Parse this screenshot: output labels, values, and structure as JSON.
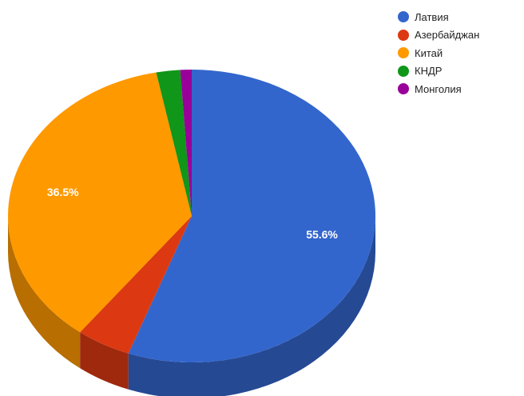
{
  "chart_data": {
    "type": "pie",
    "style": "3d",
    "title": "",
    "slices": [
      {
        "label": "Латвия",
        "value": 55.6,
        "color": "#3366cc",
        "data_label": "55.6%"
      },
      {
        "label": "Азербайджан",
        "value": 4.8,
        "color": "#dc3912",
        "data_label": ""
      },
      {
        "label": "Китай",
        "value": 36.5,
        "color": "#ff9900",
        "data_label": "36.5%"
      },
      {
        "label": "КНДР",
        "value": 2.1,
        "color": "#109618",
        "data_label": ""
      },
      {
        "label": "Монголия",
        "value": 1.0,
        "color": "#990099",
        "data_label": ""
      }
    ],
    "legend": {
      "position": "top-right"
    }
  }
}
